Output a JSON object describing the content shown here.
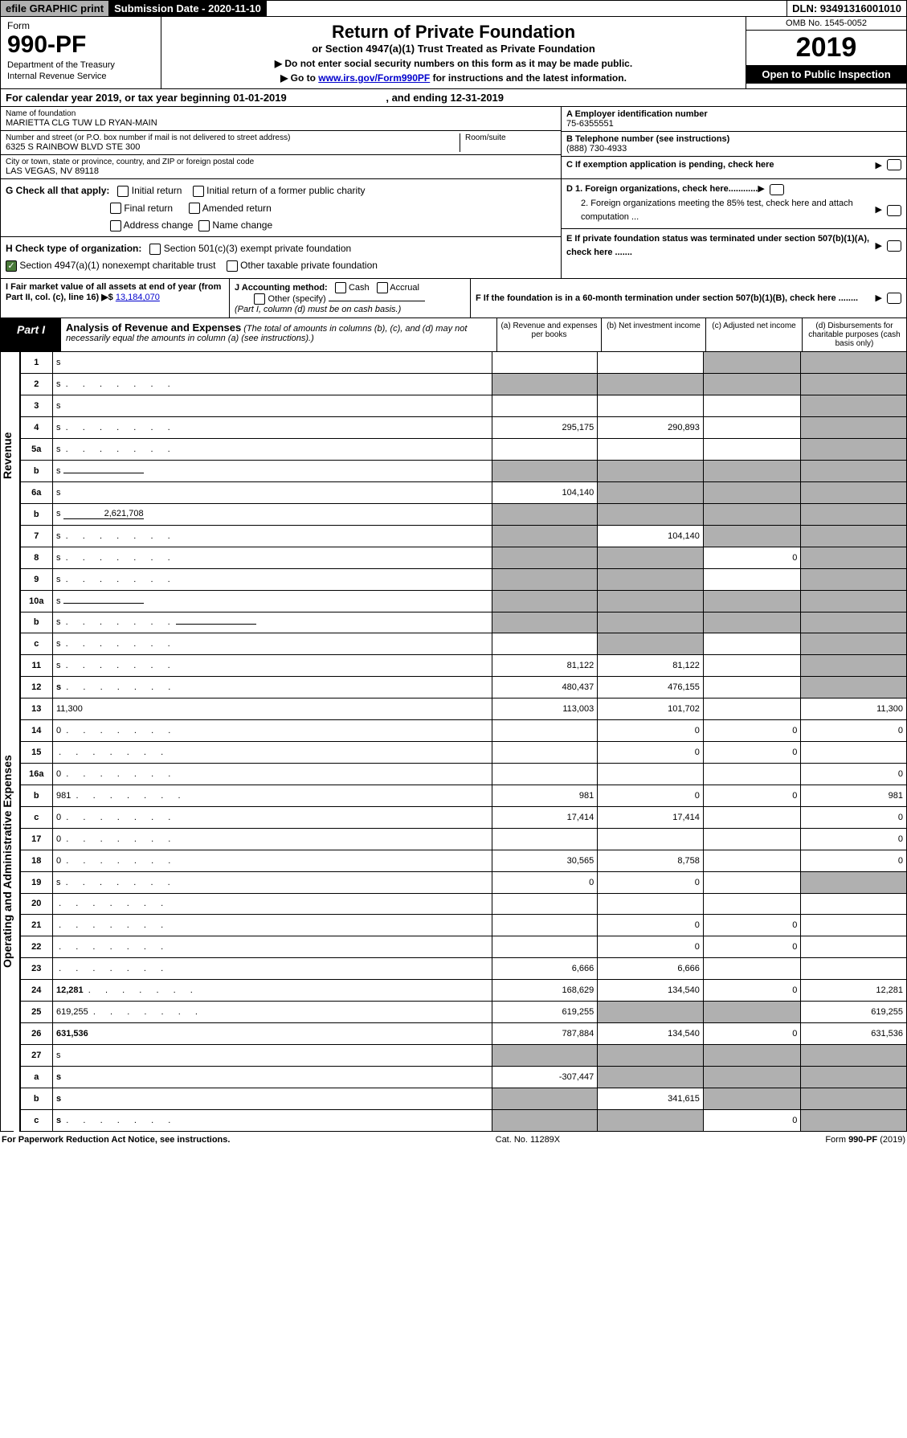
{
  "top_bar": {
    "efile": "efile GRAPHIC print",
    "submission": "Submission Date - 2020-11-10",
    "dln": "DLN: 93491316001010"
  },
  "header": {
    "form_label": "Form",
    "form_number": "990-PF",
    "dept1": "Department of the Treasury",
    "dept2": "Internal Revenue Service",
    "title": "Return of Private Foundation",
    "subtitle": "or Section 4947(a)(1) Trust Treated as Private Foundation",
    "inst1": "▶ Do not enter social security numbers on this form as it may be made public.",
    "inst2_pre": "▶ Go to ",
    "inst2_link": "www.irs.gov/Form990PF",
    "inst2_post": " for instructions and the latest information.",
    "omb": "OMB No. 1545-0052",
    "year": "2019",
    "open": "Open to Public Inspection"
  },
  "cal_year": {
    "pre": "For calendar year 2019, or tax year beginning ",
    "begin": "01-01-2019",
    "mid": " , and ending ",
    "end": "12-31-2019"
  },
  "entity": {
    "name_label": "Name of foundation",
    "name": "MARIETTA CLG TUW LD RYAN-MAIN",
    "addr_label": "Number and street (or P.O. box number if mail is not delivered to street address)",
    "addr": "6325 S RAINBOW BLVD STE 300",
    "room_label": "Room/suite",
    "city_label": "City or town, state or province, country, and ZIP or foreign postal code",
    "city": "LAS VEGAS, NV  89118",
    "ein_label": "A Employer identification number",
    "ein": "75-6355551",
    "phone_label": "B Telephone number (see instructions)",
    "phone": "(888) 730-4933",
    "c_label": "C If exemption application is pending, check here"
  },
  "checks": {
    "g_label": "G Check all that apply:",
    "g1": "Initial return",
    "g2": "Initial return of a former public charity",
    "g3": "Final return",
    "g4": "Amended return",
    "g5": "Address change",
    "g6": "Name change",
    "h_label": "H Check type of organization:",
    "h1": "Section 501(c)(3) exempt private foundation",
    "h2": "Section 4947(a)(1) nonexempt charitable trust",
    "h3": "Other taxable private foundation",
    "d1": "D 1. Foreign organizations, check here............",
    "d2": "2. Foreign organizations meeting the 85% test, check here and attach computation ...",
    "e": "E  If private foundation status was terminated under section 507(b)(1)(A), check here .......",
    "f": "F  If the foundation is in a 60-month termination under section 507(b)(1)(B), check here ........"
  },
  "fmv": {
    "i_label": "I Fair market value of all assets at end of year (from Part II, col. (c), line 16) ▶$ ",
    "i_val": "13,184,070",
    "j_label": "J Accounting method:",
    "j1": "Cash",
    "j2": "Accrual",
    "j3": "Other (specify)",
    "j_note": "(Part I, column (d) must be on cash basis.)"
  },
  "part1": {
    "label": "Part I",
    "title": "Analysis of Revenue and Expenses",
    "note": "(The total of amounts in columns (b), (c), and (d) may not necessarily equal the amounts in column (a) (see instructions).)",
    "col_a": "(a)   Revenue and expenses per books",
    "col_b": "(b)   Net investment income",
    "col_c": "(c)   Adjusted net income",
    "col_d": "(d)   Disbursements for charitable purposes (cash basis only)"
  },
  "side_revenue": "Revenue",
  "side_expenses": "Operating and Administrative Expenses",
  "rows": [
    {
      "n": "1",
      "d": "s",
      "a": "",
      "b": "",
      "c": "s"
    },
    {
      "n": "2",
      "d": "s",
      "dots": true,
      "a": "s",
      "b": "s",
      "c": "s"
    },
    {
      "n": "3",
      "d": "s",
      "a": "",
      "b": "",
      "c": ""
    },
    {
      "n": "4",
      "d": "s",
      "dots": true,
      "a": "295,175",
      "b": "290,893",
      "c": ""
    },
    {
      "n": "5a",
      "d": "s",
      "dots": true,
      "a": "",
      "b": "",
      "c": ""
    },
    {
      "n": "b",
      "d": "s",
      "uline": true,
      "a": "s",
      "b": "s",
      "c": "s"
    },
    {
      "n": "6a",
      "d": "s",
      "a": "104,140",
      "b": "s",
      "c": "s"
    },
    {
      "n": "b",
      "d": "s",
      "uline": true,
      "uv": "2,621,708",
      "a": "s",
      "b": "s",
      "c": "s"
    },
    {
      "n": "7",
      "d": "s",
      "dots": true,
      "a": "s",
      "b": "104,140",
      "c": "s"
    },
    {
      "n": "8",
      "d": "s",
      "dots": true,
      "a": "s",
      "b": "s",
      "c": "0"
    },
    {
      "n": "9",
      "d": "s",
      "dots": true,
      "a": "s",
      "b": "s",
      "c": ""
    },
    {
      "n": "10a",
      "d": "s",
      "uline": true,
      "a": "s",
      "b": "s",
      "c": "s"
    },
    {
      "n": "b",
      "d": "s",
      "dots": true,
      "uline": true,
      "a": "s",
      "b": "s",
      "c": "s"
    },
    {
      "n": "c",
      "d": "s",
      "dots": true,
      "a": "",
      "b": "s",
      "c": ""
    },
    {
      "n": "11",
      "d": "s",
      "dots": true,
      "a": "81,122",
      "b": "81,122",
      "c": ""
    },
    {
      "n": "12",
      "d": "s",
      "bold": true,
      "dots": true,
      "a": "480,437",
      "b": "476,155",
      "c": ""
    },
    {
      "n": "13",
      "d": "11,300",
      "a": "113,003",
      "b": "101,702",
      "c": ""
    },
    {
      "n": "14",
      "d": "0",
      "dots": true,
      "a": "",
      "b": "0",
      "c": "0"
    },
    {
      "n": "15",
      "d": "",
      "dots": true,
      "a": "",
      "b": "0",
      "c": "0"
    },
    {
      "n": "16a",
      "d": "0",
      "dots": true,
      "a": "",
      "b": "",
      "c": ""
    },
    {
      "n": "b",
      "d": "981",
      "dots": true,
      "a": "981",
      "b": "0",
      "c": "0"
    },
    {
      "n": "c",
      "d": "0",
      "dots": true,
      "a": "17,414",
      "b": "17,414",
      "c": ""
    },
    {
      "n": "17",
      "d": "0",
      "dots": true,
      "a": "",
      "b": "",
      "c": ""
    },
    {
      "n": "18",
      "d": "0",
      "dots": true,
      "a": "30,565",
      "b": "8,758",
      "c": ""
    },
    {
      "n": "19",
      "d": "s",
      "dots": true,
      "a": "0",
      "b": "0",
      "c": ""
    },
    {
      "n": "20",
      "d": "",
      "dots": true,
      "a": "",
      "b": "",
      "c": ""
    },
    {
      "n": "21",
      "d": "",
      "dots": true,
      "a": "",
      "b": "0",
      "c": "0"
    },
    {
      "n": "22",
      "d": "",
      "dots": true,
      "a": "",
      "b": "0",
      "c": "0"
    },
    {
      "n": "23",
      "d": "",
      "dots": true,
      "a": "6,666",
      "b": "6,666",
      "c": ""
    },
    {
      "n": "24",
      "d": "12,281",
      "bold": true,
      "dots": true,
      "a": "168,629",
      "b": "134,540",
      "c": "0"
    },
    {
      "n": "25",
      "d": "619,255",
      "dots": true,
      "a": "619,255",
      "b": "s",
      "c": "s"
    },
    {
      "n": "26",
      "d": "631,536",
      "bold": true,
      "a": "787,884",
      "b": "134,540",
      "c": "0"
    },
    {
      "n": "27",
      "d": "s",
      "a": "s",
      "b": "s",
      "c": "s"
    },
    {
      "n": "a",
      "d": "s",
      "bold": true,
      "a": "-307,447",
      "b": "s",
      "c": "s"
    },
    {
      "n": "b",
      "d": "s",
      "bold": true,
      "a": "s",
      "b": "341,615",
      "c": "s"
    },
    {
      "n": "c",
      "d": "s",
      "bold": true,
      "dots": true,
      "a": "s",
      "b": "s",
      "c": "0"
    }
  ],
  "footer": {
    "left": "For Paperwork Reduction Act Notice, see instructions.",
    "mid": "Cat. No. 11289X",
    "right": "Form 990-PF (2019)"
  }
}
